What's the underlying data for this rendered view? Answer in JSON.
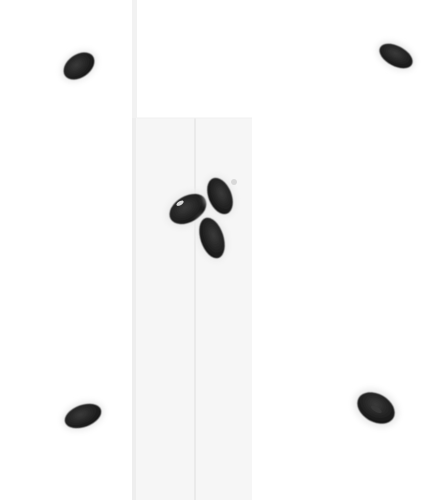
{
  "image": {
    "background_color": "#ffffff",
    "panel_color": "#f6f6f6",
    "panel_edge_color": "#ececec",
    "seam_color": "#e6e6e6",
    "particle_color": "#202020",
    "particle_halo_color": "#ebebeb"
  }
}
